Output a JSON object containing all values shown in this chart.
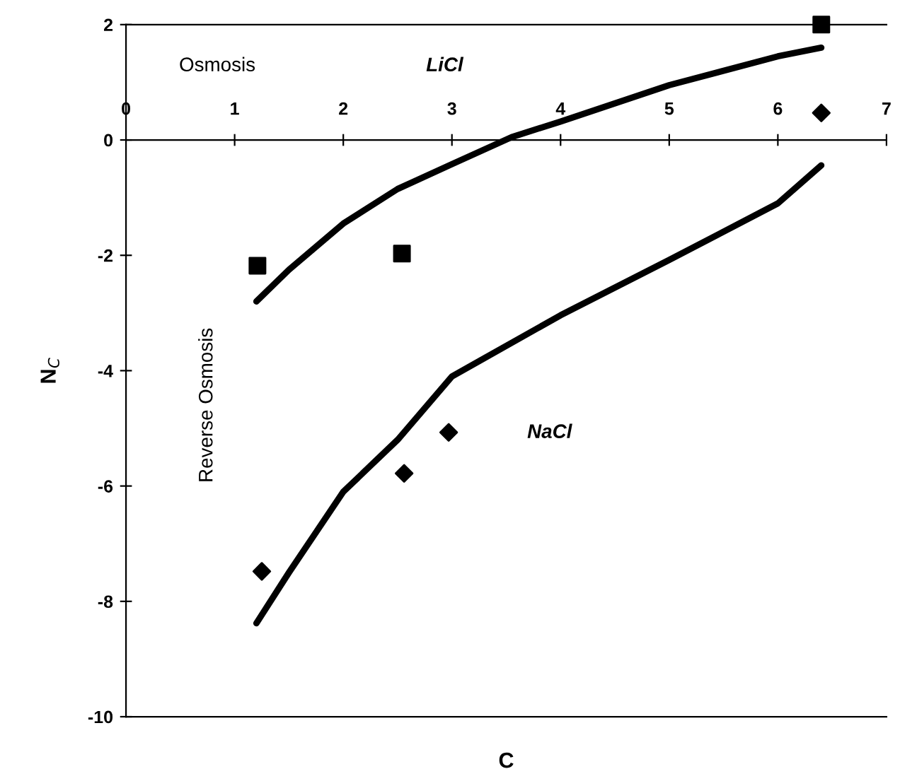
{
  "chart_data": {
    "type": "scatter",
    "xlabel": "C",
    "ylabel": "N$_{C}$",
    "xlim": [
      0,
      7
    ],
    "ylim": [
      -10,
      2
    ],
    "xticks": [
      0,
      1,
      2,
      3,
      4,
      5,
      6,
      7
    ],
    "yticks": [
      -10,
      -8,
      -6,
      -4,
      -2,
      0,
      2
    ],
    "grid": false,
    "legend": false,
    "series": [
      {
        "marker": "square",
        "color": "#000000",
        "x": [
          1.21,
          2.54,
          6.4
        ],
        "values": [
          -2.18,
          -1.97,
          2.0
        ]
      },
      {
        "type": "line",
        "marker": "none",
        "color": "#000000",
        "x": [
          1.2,
          1.5,
          2.0,
          2.5,
          3.0,
          3.55,
          4.0,
          5.0,
          6.0,
          6.4
        ],
        "values": [
          -2.8,
          -2.25,
          -1.45,
          -0.85,
          -0.42,
          0.05,
          0.32,
          0.95,
          1.45,
          1.6
        ]
      },
      {
        "marker": "diamond",
        "color": "#000000",
        "x": [
          1.25,
          2.56,
          2.97,
          6.4
        ],
        "values": [
          -7.48,
          -5.78,
          -5.07,
          0.47
        ]
      },
      {
        "type": "line",
        "marker": "none",
        "color": "#000000",
        "x": [
          1.2,
          1.5,
          2.0,
          2.5,
          3.0,
          4.0,
          5.0,
          6.0,
          6.4
        ],
        "values": [
          -8.38,
          -7.5,
          -6.1,
          -5.2,
          -4.1,
          -3.04,
          -2.08,
          -1.1,
          -0.44
        ]
      }
    ],
    "annotations": [
      "Osmosis",
      "Reverse Osmosis",
      "LiCl",
      "NaCl"
    ]
  }
}
